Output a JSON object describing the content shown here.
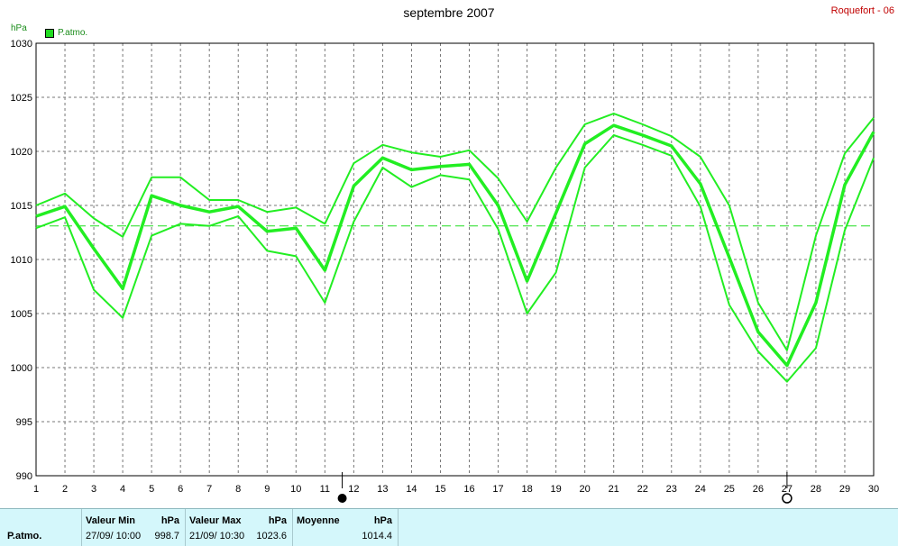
{
  "header": {
    "title": "septembre 2007",
    "station": "Roquefort - 06"
  },
  "legend": {
    "series_label": "P.atmo.",
    "unit_label": "hPa"
  },
  "colors": {
    "series": "#22ee22",
    "grid": "#777777",
    "mean_line": "#22dd22",
    "axis_text": "#000000",
    "unit_text": "#1a8c1a",
    "station_text": "#c00000",
    "stats_bg": "#d4f7fb"
  },
  "chart_data": {
    "type": "line",
    "title": "septembre 2007",
    "ylabel": "hPa",
    "x": [
      1,
      2,
      3,
      4,
      5,
      6,
      7,
      8,
      9,
      10,
      11,
      12,
      13,
      14,
      15,
      16,
      17,
      18,
      19,
      20,
      21,
      22,
      23,
      24,
      25,
      26,
      27,
      28,
      29,
      30
    ],
    "xlim": [
      1,
      30
    ],
    "ylim": [
      990,
      1030
    ],
    "yticks": [
      990,
      995,
      1000,
      1005,
      1010,
      1015,
      1020,
      1025,
      1030
    ],
    "grid": true,
    "mean_line": 1013.1,
    "markers": [
      {
        "x": 11.6,
        "symbol": "filled-circle"
      },
      {
        "x": 27,
        "symbol": "open-circle"
      }
    ],
    "series": [
      {
        "role": "max",
        "values": [
          1015.0,
          1016.1,
          1013.8,
          1012.1,
          1017.6,
          1017.6,
          1015.5,
          1015.5,
          1014.4,
          1014.8,
          1013.3,
          1018.9,
          1020.6,
          1019.9,
          1019.5,
          1020.1,
          1017.5,
          1013.5,
          1018.5,
          1022.5,
          1023.5,
          1022.5,
          1021.4,
          1019.5,
          1015.0,
          1006.0,
          1001.6,
          1012.2,
          1019.8,
          1023.1
        ]
      },
      {
        "role": "mean",
        "values": [
          1014.0,
          1014.9,
          1011.0,
          1007.3,
          1015.9,
          1015.0,
          1014.4,
          1014.9,
          1012.6,
          1012.9,
          1009.0,
          1016.8,
          1019.4,
          1018.3,
          1018.6,
          1018.8,
          1015.0,
          1008.0,
          1014.3,
          1020.7,
          1022.4,
          1021.5,
          1020.5,
          1017.0,
          1010.2,
          1003.3,
          1000.2,
          1006.0,
          1016.9,
          1021.8
        ]
      },
      {
        "role": "min",
        "values": [
          1012.9,
          1013.9,
          1007.2,
          1004.6,
          1012.2,
          1013.3,
          1013.1,
          1014.0,
          1010.8,
          1010.3,
          1006.0,
          1013.5,
          1018.5,
          1016.7,
          1017.8,
          1017.4,
          1012.8,
          1005.0,
          1008.8,
          1018.5,
          1021.5,
          1020.6,
          1019.6,
          1014.9,
          1005.8,
          1001.5,
          998.7,
          1001.8,
          1012.7,
          1019.4
        ]
      }
    ]
  },
  "stats": {
    "row_label": "P.atmo.",
    "min": {
      "header": "Valeur Min",
      "unit": "hPa",
      "date": "27/09/  10:00",
      "value": "998.7"
    },
    "max": {
      "header": "Valeur Max",
      "unit": "hPa",
      "date": "21/09/  10:30",
      "value": "1023.6"
    },
    "mean": {
      "header": "Moyenne",
      "unit": "hPa",
      "value": "1014.4"
    }
  }
}
